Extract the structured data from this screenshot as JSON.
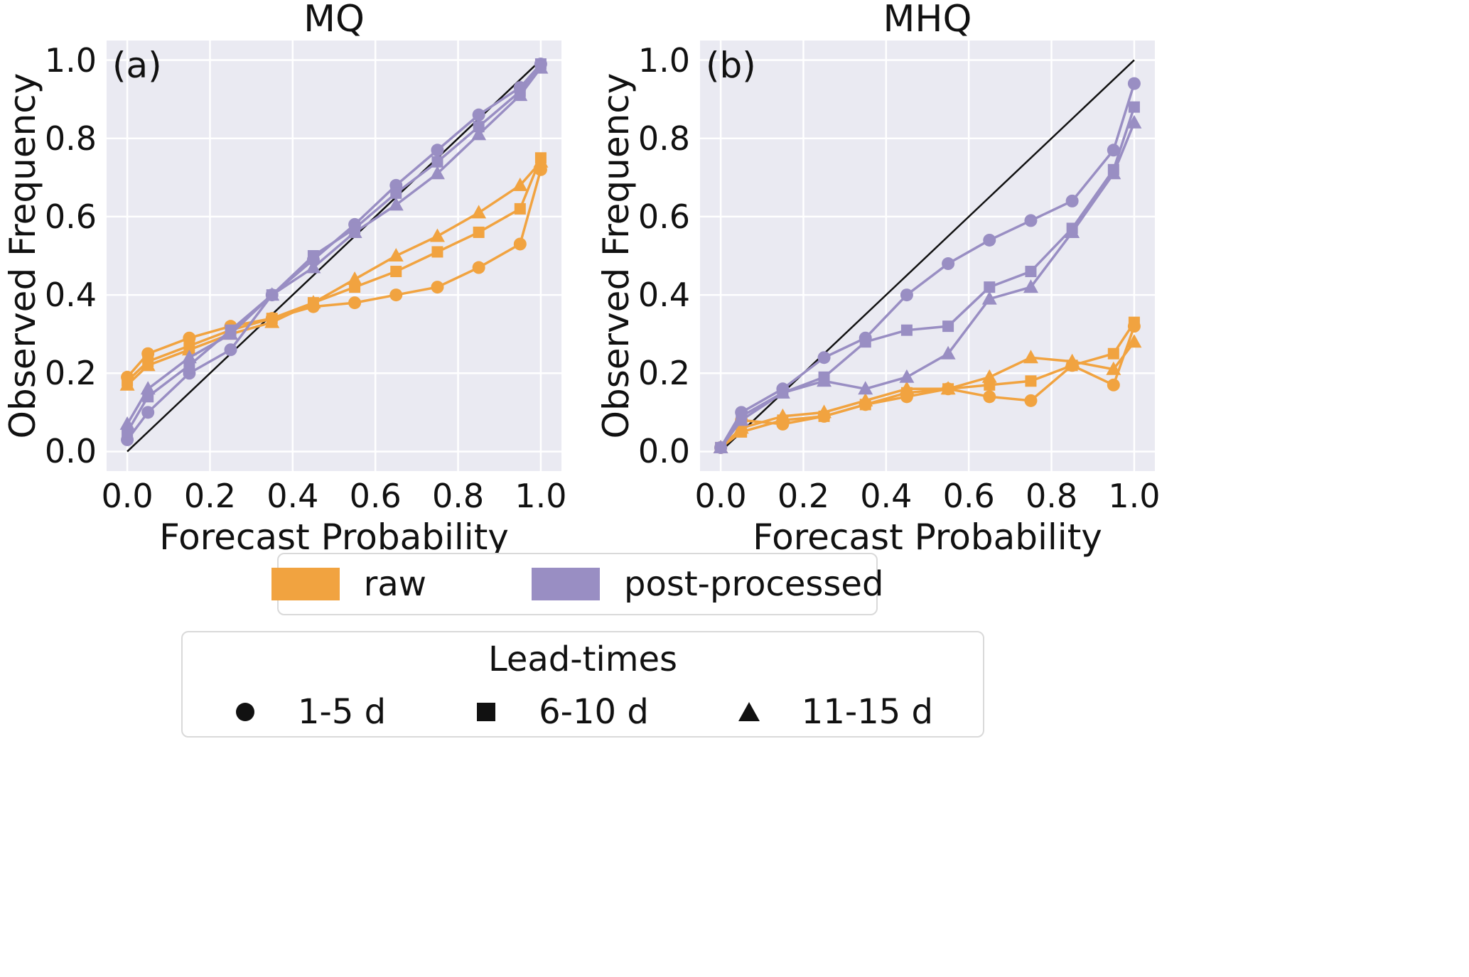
{
  "figure": {
    "background": "#ffffff",
    "panel_background": "#eaeaf2",
    "grid_color": "#ffffff",
    "diagonal_color": "#111111"
  },
  "legends": {
    "style": {
      "raw_label": "raw",
      "post_label": "post-processed",
      "raw_color": "#f1a340",
      "post_color": "#998ec3"
    },
    "lead_times": {
      "title": "Lead-times",
      "items": [
        {
          "marker": "circle",
          "label": "1-5 d"
        },
        {
          "marker": "square",
          "label": "6-10 d"
        },
        {
          "marker": "triangle",
          "label": "11-15 d"
        }
      ],
      "marker_color": "#111111"
    }
  },
  "chart_data": [
    {
      "type": "line",
      "title": "MQ",
      "panel_label": "(a)",
      "xlabel": "Forecast Probability",
      "ylabel": "Observed Frequency",
      "xlim": [
        -0.05,
        1.05
      ],
      "ylim": [
        -0.05,
        1.05
      ],
      "xticks": [
        0.0,
        0.2,
        0.4,
        0.6,
        0.8,
        1.0
      ],
      "yticks": [
        0.0,
        0.2,
        0.4,
        0.6,
        0.8,
        1.0
      ],
      "grid": true,
      "diagonal": true,
      "x": [
        0.0,
        0.05,
        0.15,
        0.25,
        0.35,
        0.45,
        0.55,
        0.65,
        0.75,
        0.85,
        0.95,
        1.0
      ],
      "series": [
        {
          "name": "raw 1-5 d",
          "group": "raw",
          "marker": "circle",
          "color": "#f1a340",
          "y": [
            0.19,
            0.25,
            0.29,
            0.32,
            0.34,
            0.37,
            0.38,
            0.4,
            0.42,
            0.47,
            0.53,
            0.72
          ]
        },
        {
          "name": "raw 6-10 d",
          "group": "raw",
          "marker": "square",
          "color": "#f1a340",
          "y": [
            0.18,
            0.23,
            0.27,
            0.31,
            0.34,
            0.38,
            0.42,
            0.46,
            0.51,
            0.56,
            0.62,
            0.75
          ]
        },
        {
          "name": "raw 11-15 d",
          "group": "raw",
          "marker": "triangle",
          "color": "#f1a340",
          "y": [
            0.17,
            0.22,
            0.26,
            0.3,
            0.33,
            0.38,
            0.44,
            0.5,
            0.55,
            0.61,
            0.68,
            0.74
          ]
        },
        {
          "name": "post-processed 1-5 d",
          "group": "post-processed",
          "marker": "circle",
          "color": "#998ec3",
          "y": [
            0.03,
            0.1,
            0.2,
            0.26,
            0.4,
            0.49,
            0.58,
            0.68,
            0.77,
            0.86,
            0.93,
            0.99
          ]
        },
        {
          "name": "post-processed 6-10 d",
          "group": "post-processed",
          "marker": "square",
          "color": "#998ec3",
          "y": [
            0.05,
            0.14,
            0.22,
            0.31,
            0.4,
            0.5,
            0.57,
            0.66,
            0.74,
            0.83,
            0.92,
            0.99
          ]
        },
        {
          "name": "post-processed 11-15 d",
          "group": "post-processed",
          "marker": "triangle",
          "color": "#998ec3",
          "y": [
            0.07,
            0.16,
            0.24,
            0.3,
            0.4,
            0.47,
            0.56,
            0.63,
            0.71,
            0.81,
            0.91,
            0.98
          ]
        }
      ]
    },
    {
      "type": "line",
      "title": "MHQ",
      "panel_label": "(b)",
      "xlabel": "Forecast Probability",
      "ylabel": "Observed Frequency",
      "xlim": [
        -0.05,
        1.05
      ],
      "ylim": [
        -0.05,
        1.05
      ],
      "xticks": [
        0.0,
        0.2,
        0.4,
        0.6,
        0.8,
        1.0
      ],
      "yticks": [
        0.0,
        0.2,
        0.4,
        0.6,
        0.8,
        1.0
      ],
      "grid": true,
      "diagonal": true,
      "x": [
        0.0,
        0.05,
        0.15,
        0.25,
        0.35,
        0.45,
        0.55,
        0.65,
        0.75,
        0.85,
        0.95,
        1.0
      ],
      "series": [
        {
          "name": "raw 1-5 d",
          "group": "raw",
          "marker": "circle",
          "color": "#f1a340",
          "y": [
            0.01,
            0.08,
            0.07,
            0.09,
            0.12,
            0.14,
            0.16,
            0.14,
            0.13,
            0.22,
            0.17,
            0.32
          ]
        },
        {
          "name": "raw 6-10 d",
          "group": "raw",
          "marker": "square",
          "color": "#f1a340",
          "y": [
            0.01,
            0.05,
            0.08,
            0.09,
            0.12,
            0.15,
            0.16,
            0.17,
            0.18,
            0.22,
            0.25,
            0.33
          ]
        },
        {
          "name": "raw 11-15 d",
          "group": "raw",
          "marker": "triangle",
          "color": "#f1a340",
          "y": [
            0.01,
            0.06,
            0.09,
            0.1,
            0.13,
            0.16,
            0.16,
            0.19,
            0.24,
            0.23,
            0.21,
            0.28
          ]
        },
        {
          "name": "post-processed 1-5 d",
          "group": "post-processed",
          "marker": "circle",
          "color": "#998ec3",
          "y": [
            0.01,
            0.1,
            0.16,
            0.24,
            0.29,
            0.4,
            0.48,
            0.54,
            0.59,
            0.64,
            0.77,
            0.94
          ]
        },
        {
          "name": "post-processed 6-10 d",
          "group": "post-processed",
          "marker": "square",
          "color": "#998ec3",
          "y": [
            0.01,
            0.09,
            0.15,
            0.19,
            0.28,
            0.31,
            0.32,
            0.42,
            0.46,
            0.57,
            0.72,
            0.88
          ]
        },
        {
          "name": "post-processed 11-15 d",
          "group": "post-processed",
          "marker": "triangle",
          "color": "#998ec3",
          "y": [
            0.01,
            0.08,
            0.15,
            0.18,
            0.16,
            0.19,
            0.25,
            0.39,
            0.42,
            0.56,
            0.71,
            0.84
          ]
        }
      ]
    }
  ]
}
